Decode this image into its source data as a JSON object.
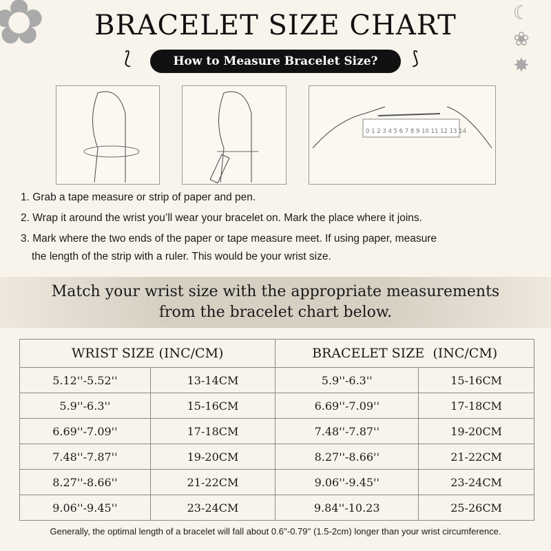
{
  "title": "BRACELET SIZE CHART",
  "subtitle": "How to Measure Bracelet Size?",
  "ruler_numbers": "0 1 2 3 4 5 6 7 8 9 10 11 12 13 14",
  "steps": [
    "1. Grab a tape measure or strip of paper and pen.",
    "2. Wrap it around the wrist you’ll wear your bracelet on. Mark the place where it joins.",
    "3. Mark where the two ends of the paper or tape measure meet. If using paper, measure",
    "the length of the strip with a ruler. This would be your wrist size."
  ],
  "band": [
    "Match your wrist size with the appropriate measurements",
    "from the bracelet chart below."
  ],
  "table": {
    "headers": [
      "WRIST SIZE (INC/CM)",
      "BRACELET SIZE  (INC/CM)"
    ],
    "rows": [
      [
        "5.12''-5.52''",
        "13-14CM",
        "5.9''-6.3''",
        "15-16CM"
      ],
      [
        "5.9''-6.3''",
        "15-16CM",
        "6.69''-7.09''",
        "17-18CM"
      ],
      [
        "6.69''-7.09''",
        "17-18CM",
        "7.48''-7.87''",
        "19-20CM"
      ],
      [
        "7.48''-7.87''",
        "19-20CM",
        "8.27''-8.66''",
        "21-22CM"
      ],
      [
        "8.27''-8.66''",
        "21-22CM",
        "9.06''-9.45''",
        "23-24CM"
      ],
      [
        "9.06''-9.45''",
        "23-24CM",
        "9.84''-10.23",
        "25-26CM"
      ]
    ]
  },
  "note": "Generally, the optimal length of a bracelet will fall about 0.6''-0.79'' (1.5-2cm) longer than your wrist circumference."
}
